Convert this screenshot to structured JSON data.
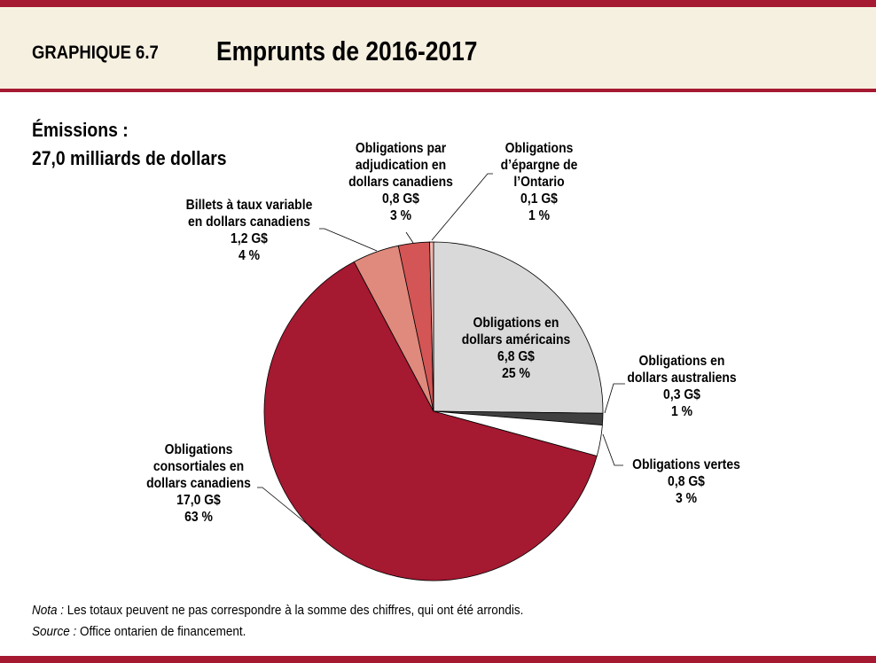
{
  "header": {
    "figure_number": "GRAPHIQUE 6.7",
    "title": "Emprunts de 2016-2017"
  },
  "subtitle": {
    "line1": "Émissions :",
    "line2": "27,0 milliards de dollars"
  },
  "chart_data": {
    "type": "pie",
    "title": "Emprunts de 2016-2017",
    "start": "top",
    "direction": "clockwise",
    "unit": "G$",
    "slices": [
      {
        "label": [
          "Obligations en",
          "dollars américains"
        ],
        "value": 6.8,
        "value_label": "6,8 G$",
        "percent_label": "25 %",
        "color": "#d9d9d9"
      },
      {
        "label": [
          "Obligations en",
          "dollars australiens"
        ],
        "value": 0.3,
        "value_label": "0,3 G$",
        "percent_label": "1 %",
        "color": "#404040"
      },
      {
        "label": [
          "Obligations vertes"
        ],
        "value": 0.8,
        "value_label": "0,8 G$",
        "percent_label": "3 %",
        "color": "#ffffff"
      },
      {
        "label": [
          "Obligations",
          "consortiales en",
          "dollars canadiens"
        ],
        "value": 17.0,
        "value_label": "17,0 G$",
        "percent_label": "63 %",
        "color": "#a51931"
      },
      {
        "label": [
          "Billets à taux variable",
          "en dollars canadiens"
        ],
        "value": 1.2,
        "value_label": "1,2 G$",
        "percent_label": "4 %",
        "color": "#e0897d"
      },
      {
        "label": [
          "Obligations par",
          "adjudication en",
          "dollars canadiens"
        ],
        "value": 0.8,
        "value_label": "0,8 G$",
        "percent_label": "3 %",
        "color": "#d45555"
      },
      {
        "label": [
          "Obligations",
          "d’épargne de",
          "l’Ontario"
        ],
        "value": 0.1,
        "value_label": "0,1 G$",
        "percent_label": "1 %",
        "color": "#f4b8b0"
      }
    ]
  },
  "notes": {
    "nota_label": "Nota :",
    "nota_text": "Les totaux peuvent ne pas correspondre à la somme des chiffres, qui ont été arrondis.",
    "source_label": "Source :",
    "source_text": "Office  ontarien de financement."
  }
}
